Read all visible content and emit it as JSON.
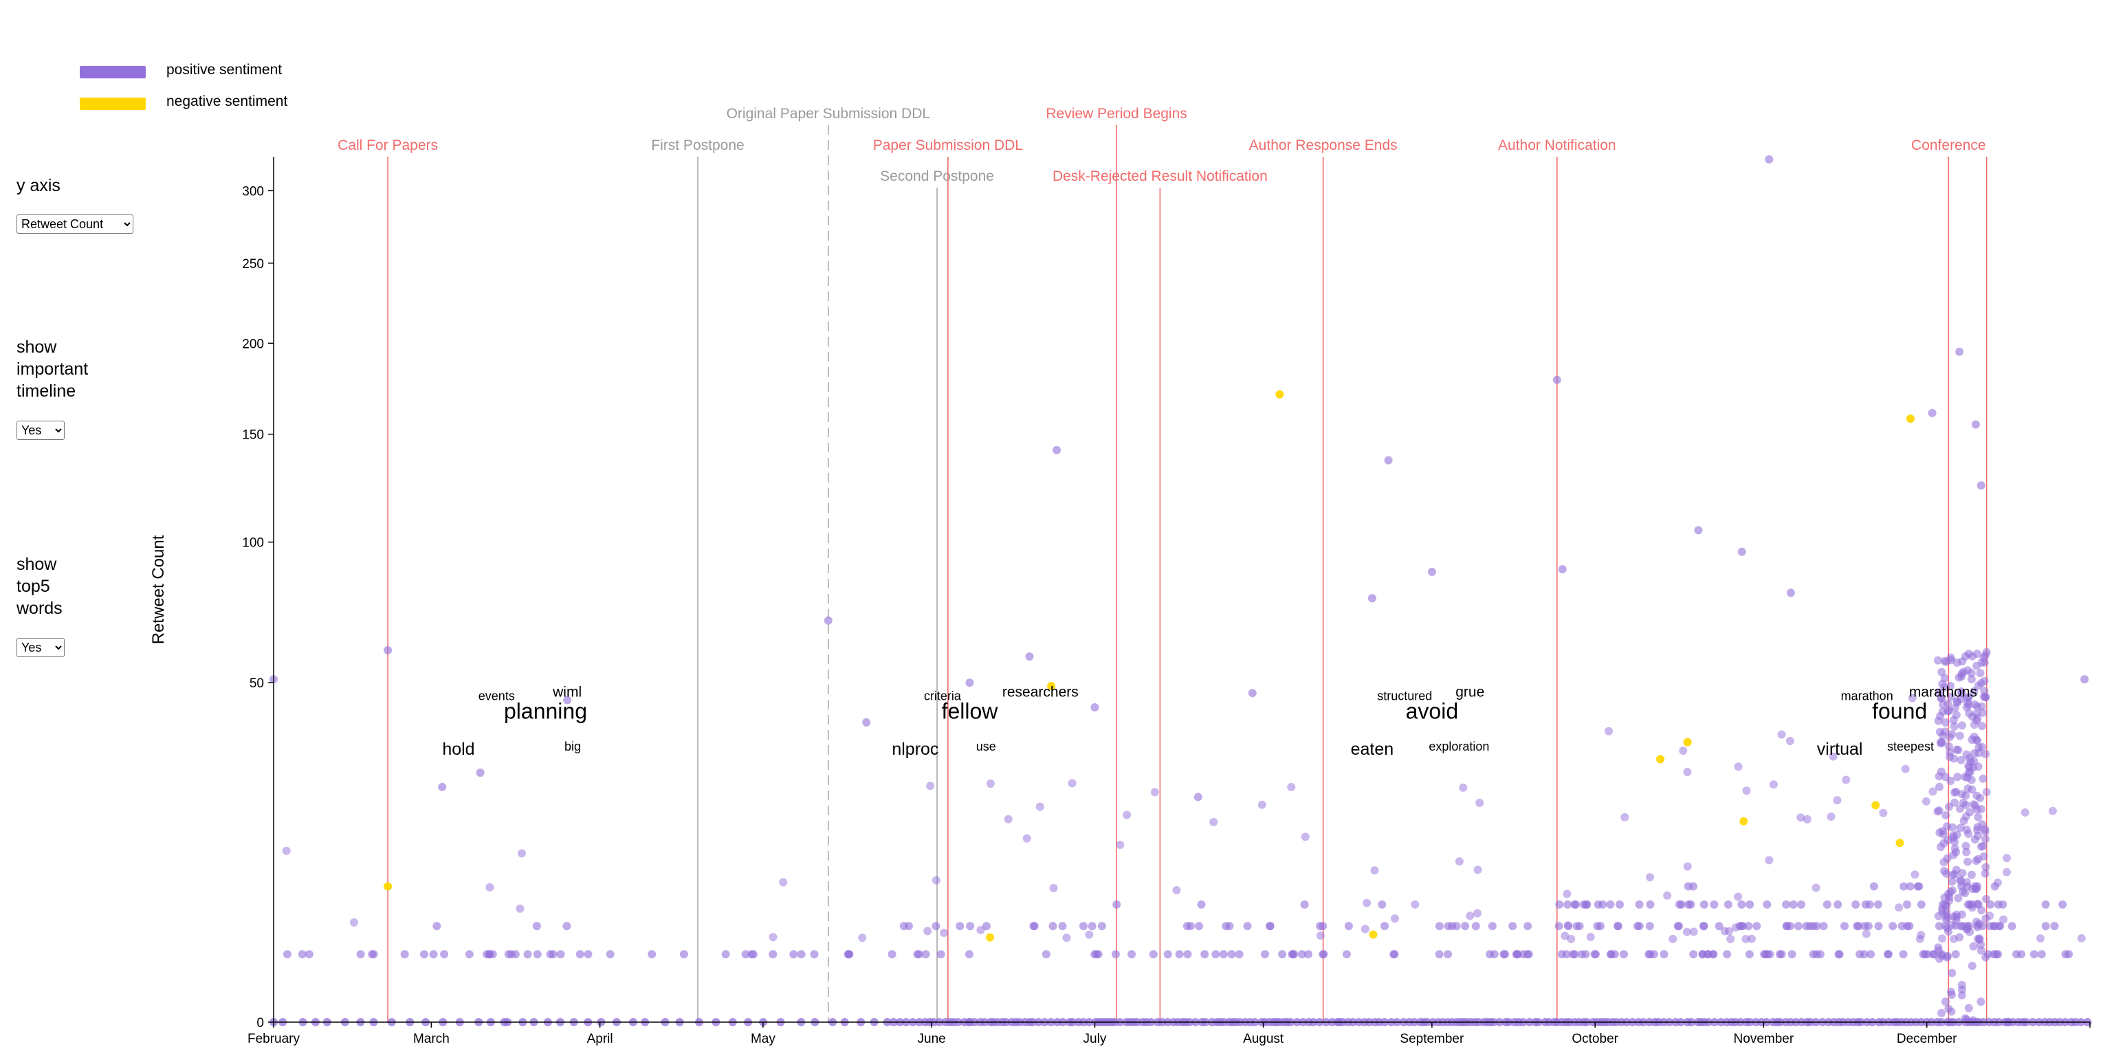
{
  "legend": {
    "items": [
      {
        "label": "positive sentiment",
        "color": "#9370DB"
      },
      {
        "label": "negative sentiment",
        "color": "#FFD700"
      }
    ]
  },
  "controls": {
    "y_axis": {
      "label": "y axis",
      "value": "Retweet Count"
    },
    "timeline": {
      "label_lines": [
        "show",
        "important",
        "timeline"
      ],
      "value": "Yes"
    },
    "top_words": {
      "label_lines": [
        "show",
        "top5",
        "words"
      ],
      "value": "Yes"
    }
  },
  "chart_data": {
    "type": "scatter",
    "title": "",
    "xlabel": "",
    "ylabel": "Retweet Count",
    "x_tick_labels": [
      "February",
      "March",
      "April",
      "May",
      "June",
      "July",
      "August",
      "September",
      "October",
      "November",
      "December"
    ],
    "x_domain": [
      "2020-02-01",
      "2020-12-31"
    ],
    "y_scale": "sqrt",
    "y_ticks": [
      0,
      50,
      100,
      150,
      200,
      250,
      300
    ],
    "ylim": [
      0,
      325
    ],
    "colors": {
      "positive": "#9370DB",
      "negative": "#FFD700",
      "important_event": "#F26B6B",
      "other_event": "#A9A9A9"
    },
    "events": [
      {
        "date": "2020-02-22",
        "label": "Call For Papers",
        "kind": "important"
      },
      {
        "date": "2020-04-19",
        "label": "First Postpone",
        "kind": "other"
      },
      {
        "date": "2020-05-13",
        "label": "Original Paper Submission DDL",
        "kind": "dashed"
      },
      {
        "date": "2020-06-02",
        "label": "Second Postpone",
        "kind": "other"
      },
      {
        "date": "2020-06-04",
        "label": "Paper Submission DDL",
        "kind": "important"
      },
      {
        "date": "2020-07-05",
        "label": "Review Period Begins",
        "kind": "important"
      },
      {
        "date": "2020-07-13",
        "label": "Desk-Rejected Result Notification",
        "kind": "important"
      },
      {
        "date": "2020-08-12",
        "label": "Author Response Ends",
        "kind": "important"
      },
      {
        "date": "2020-09-24",
        "label": "Author Notification",
        "kind": "important"
      },
      {
        "date": "2020-12-05",
        "label": "Conference",
        "kind": "important"
      },
      {
        "date": "2020-12-12",
        "label": "",
        "kind": "important"
      }
    ],
    "top_words": [
      {
        "date": "2020-03-22",
        "y": 40,
        "text": "planning",
        "size": 32
      },
      {
        "date": "2020-03-26",
        "y": 46,
        "text": "wiml",
        "size": 21
      },
      {
        "date": "2020-03-13",
        "y": 45,
        "text": "events",
        "size": 18
      },
      {
        "date": "2020-03-27",
        "y": 32,
        "text": "big",
        "size": 18
      },
      {
        "date": "2020-03-06",
        "y": 31,
        "text": "hold",
        "size": 25
      },
      {
        "date": "2020-06-08",
        "y": 40,
        "text": "fellow",
        "size": 32
      },
      {
        "date": "2020-06-21",
        "y": 46,
        "text": "researchers",
        "size": 21
      },
      {
        "date": "2020-06-03",
        "y": 45,
        "text": "criteria",
        "size": 18
      },
      {
        "date": "2020-06-11",
        "y": 32,
        "text": "use",
        "size": 18
      },
      {
        "date": "2020-05-29",
        "y": 31,
        "text": "nlproc",
        "size": 25
      },
      {
        "date": "2020-09-01",
        "y": 40,
        "text": "avoid",
        "size": 32
      },
      {
        "date": "2020-09-08",
        "y": 46,
        "text": "grue",
        "size": 21
      },
      {
        "date": "2020-08-27",
        "y": 45,
        "text": "structured",
        "size": 18
      },
      {
        "date": "2020-09-06",
        "y": 32,
        "text": "exploration",
        "size": 18
      },
      {
        "date": "2020-08-21",
        "y": 31,
        "text": "eaten",
        "size": 25
      },
      {
        "date": "2020-11-26",
        "y": 40,
        "text": "found",
        "size": 32
      },
      {
        "date": "2020-12-04",
        "y": 46,
        "text": "marathons",
        "size": 21
      },
      {
        "date": "2020-11-20",
        "y": 45,
        "text": "marathon",
        "size": 18
      },
      {
        "date": "2020-11-28",
        "y": 32,
        "text": "steepest",
        "size": 18
      },
      {
        "date": "2020-11-15",
        "y": 31,
        "text": "virtual",
        "size": 25
      }
    ],
    "outliers": [
      {
        "date": "2020-02-01",
        "y": 51,
        "s": "positive"
      },
      {
        "date": "2020-02-22",
        "y": 60,
        "s": "positive"
      },
      {
        "date": "2020-02-22",
        "y": 8,
        "s": "negative"
      },
      {
        "date": "2020-03-03",
        "y": 24,
        "s": "positive"
      },
      {
        "date": "2020-03-10",
        "y": 27,
        "s": "positive"
      },
      {
        "date": "2020-03-26",
        "y": 45,
        "s": "positive"
      },
      {
        "date": "2020-05-13",
        "y": 70,
        "s": "positive"
      },
      {
        "date": "2020-05-20",
        "y": 39,
        "s": "positive"
      },
      {
        "date": "2020-06-08",
        "y": 50,
        "s": "positive"
      },
      {
        "date": "2020-06-19",
        "y": 58,
        "s": "positive"
      },
      {
        "date": "2020-06-23",
        "y": 49,
        "s": "negative"
      },
      {
        "date": "2020-06-24",
        "y": 142,
        "s": "positive"
      },
      {
        "date": "2020-07-01",
        "y": 43,
        "s": "positive"
      },
      {
        "date": "2020-07-20",
        "y": 22,
        "s": "positive"
      },
      {
        "date": "2020-07-30",
        "y": 47,
        "s": "positive"
      },
      {
        "date": "2020-08-04",
        "y": 171,
        "s": "negative"
      },
      {
        "date": "2020-08-21",
        "y": 78,
        "s": "positive"
      },
      {
        "date": "2020-08-24",
        "y": 137,
        "s": "positive"
      },
      {
        "date": "2020-09-01",
        "y": 88,
        "s": "positive"
      },
      {
        "date": "2020-09-24",
        "y": 179,
        "s": "positive"
      },
      {
        "date": "2020-09-25",
        "y": 89,
        "s": "positive"
      },
      {
        "date": "2020-10-13",
        "y": 30,
        "s": "negative"
      },
      {
        "date": "2020-10-18",
        "y": 34,
        "s": "negative"
      },
      {
        "date": "2020-10-20",
        "y": 105,
        "s": "positive"
      },
      {
        "date": "2020-10-28",
        "y": 96,
        "s": "positive"
      },
      {
        "date": "2020-11-02",
        "y": 323,
        "s": "positive"
      },
      {
        "date": "2020-11-06",
        "y": 80,
        "s": "positive"
      },
      {
        "date": "2020-11-28",
        "y": 158,
        "s": "negative"
      },
      {
        "date": "2020-12-02",
        "y": 161,
        "s": "positive"
      },
      {
        "date": "2020-12-07",
        "y": 195,
        "s": "positive"
      },
      {
        "date": "2020-12-10",
        "y": 155,
        "s": "positive"
      },
      {
        "date": "2020-12-11",
        "y": 125,
        "s": "positive"
      },
      {
        "date": "2020-12-30",
        "y": 51,
        "s": "positive"
      }
    ],
    "density": [
      {
        "from": "2020-02-01",
        "to": "2020-03-15",
        "level": 1
      },
      {
        "from": "2020-03-15",
        "to": "2020-05-25",
        "level": 1
      },
      {
        "from": "2020-05-25",
        "to": "2020-06-08",
        "level": 2
      },
      {
        "from": "2020-06-08",
        "to": "2020-08-15",
        "level": 2
      },
      {
        "from": "2020-08-15",
        "to": "2020-09-24",
        "level": 2
      },
      {
        "from": "2020-09-24",
        "to": "2020-11-25",
        "level": 3
      },
      {
        "from": "2020-11-25",
        "to": "2020-12-16",
        "level": 4
      },
      {
        "from": "2020-12-16",
        "to": "2020-12-31",
        "level": 2
      }
    ],
    "grid": false
  }
}
